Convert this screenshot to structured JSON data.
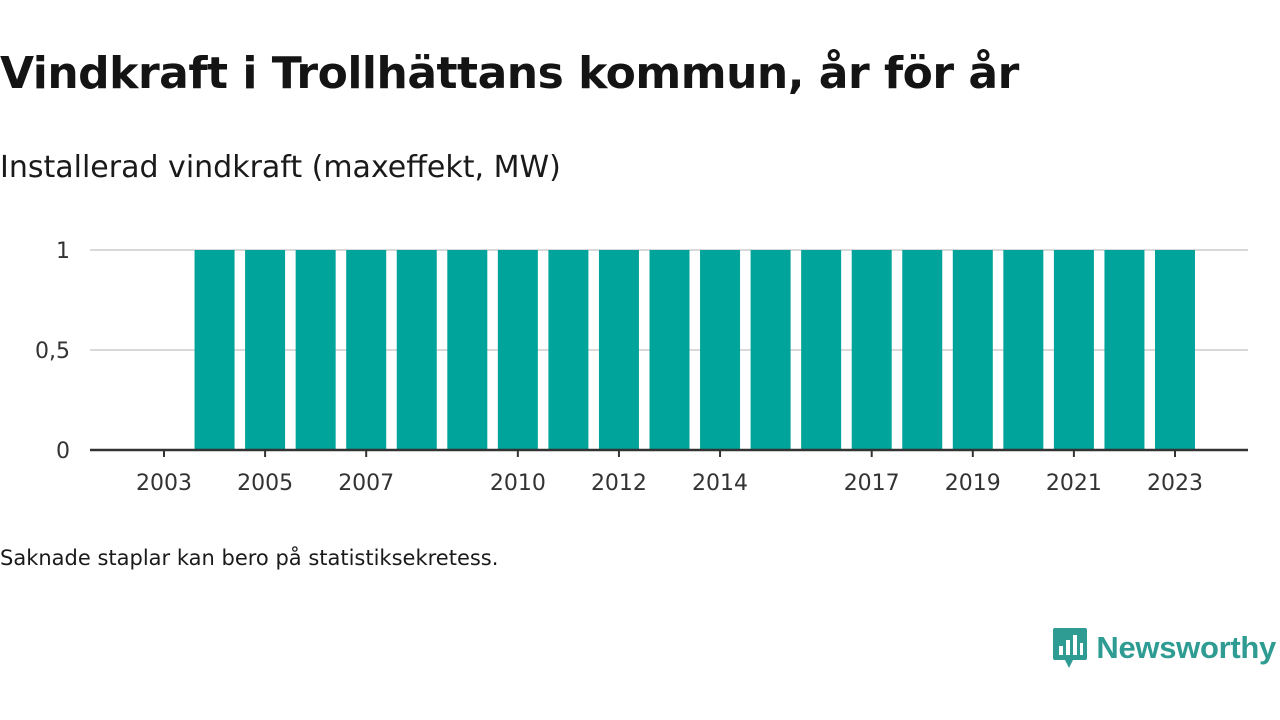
{
  "header": {
    "title": "Vindkraft i Trollhättans kommun, år för år",
    "subtitle": "Installerad vindkraft (maxeffekt, MW)"
  },
  "footer": {
    "note": "Saknade staplar kan bero på statistiksekretess.",
    "brand": "Newsworthy"
  },
  "colors": {
    "bar": "#00a49a",
    "grid": "#d9d9d9",
    "axis": "#333333",
    "brand": "#2e9c92"
  },
  "icons": {
    "brand_logo": "newsworthy-chart-bubble-icon"
  },
  "chart_data": {
    "type": "bar",
    "categories": [
      2003,
      2004,
      2005,
      2006,
      2007,
      2008,
      2009,
      2010,
      2011,
      2012,
      2013,
      2014,
      2015,
      2016,
      2017,
      2018,
      2019,
      2020,
      2021,
      2022,
      2023
    ],
    "values": [
      0,
      1,
      1,
      1,
      1,
      1,
      1,
      1,
      1,
      1,
      1,
      1,
      1,
      1,
      1,
      1,
      1,
      1,
      1,
      1,
      1
    ],
    "x_tick_labels": [
      "2003",
      "2005",
      "2007",
      "2010",
      "2012",
      "2014",
      "2017",
      "2019",
      "2021",
      "2023"
    ],
    "y_ticks": [
      0,
      0.5,
      1
    ],
    "y_tick_labels": [
      "0",
      "0,5",
      "1"
    ],
    "ylim": [
      0,
      1
    ],
    "grid": true,
    "legend": "none",
    "xlabel": "",
    "ylabel": ""
  }
}
